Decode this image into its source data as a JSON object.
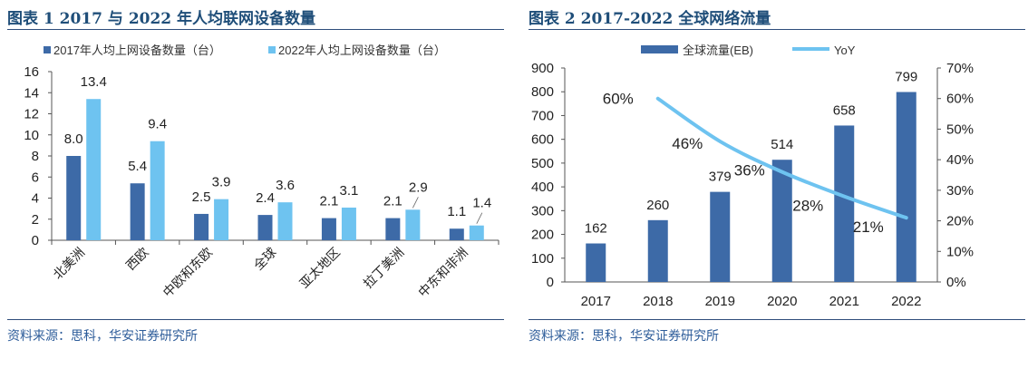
{
  "left": {
    "title": "图表 1 2017 与 2022 年人均联网设备数量",
    "source": "资料来源：思科，华安证券研究所"
  },
  "right": {
    "title": "图表 2 2017-2022 全球网络流量",
    "source": "资料来源：思科，华安证券研究所"
  },
  "colors": {
    "title": "#1f4e79",
    "dark_bar": "#3d6aa7",
    "light_bar": "#6ec3f0",
    "line": "#6ec3f0",
    "source": "#2e5d9a"
  },
  "chart_data": [
    {
      "type": "bar",
      "categories": [
        "北美洲",
        "西欧",
        "中欧和东欧",
        "全球",
        "亚太地区",
        "拉丁美洲",
        "中东和非洲"
      ],
      "series": [
        {
          "name": "2017年人均上网设备数量（台）",
          "values": [
            8.0,
            5.4,
            2.5,
            2.4,
            2.1,
            2.1,
            1.1
          ],
          "labels": [
            "8.0",
            "5.4",
            "2.5",
            "2.4",
            "2.1",
            "2.1",
            "1.1"
          ]
        },
        {
          "name": "2022年人均上网设备数量（台）",
          "values": [
            13.4,
            9.4,
            3.9,
            3.6,
            3.1,
            2.9,
            1.4
          ],
          "labels": [
            "13.4",
            "9.4",
            "3.9",
            "3.6",
            "3.1",
            "2.9",
            "1.4"
          ]
        }
      ],
      "ylim": [
        0,
        16
      ],
      "yticks": [
        0,
        2,
        4,
        6,
        8,
        10,
        12,
        14,
        16
      ],
      "legend": "top",
      "grid": false
    },
    {
      "type": "bar+line",
      "categories": [
        "2017",
        "2018",
        "2019",
        "2020",
        "2021",
        "2022"
      ],
      "bar_series": {
        "name": "全球流量(EB)",
        "values": [
          162,
          260,
          379,
          514,
          658,
          799
        ]
      },
      "line_series": {
        "name": "YoY",
        "x": [
          "2018",
          "2019",
          "2020",
          "2021",
          "2022"
        ],
        "values": [
          60,
          46,
          36,
          28,
          21
        ],
        "labels": [
          "60%",
          "46%",
          "36%",
          "28%",
          "21%"
        ]
      },
      "ylim_left": [
        0,
        900
      ],
      "yticks_left": [
        0,
        100,
        200,
        300,
        400,
        500,
        600,
        700,
        800,
        900
      ],
      "ylim_right": [
        0,
        70
      ],
      "yticks_right": [
        "0%",
        "10%",
        "20%",
        "30%",
        "40%",
        "50%",
        "60%",
        "70%"
      ],
      "legend": "top",
      "grid": false
    }
  ]
}
